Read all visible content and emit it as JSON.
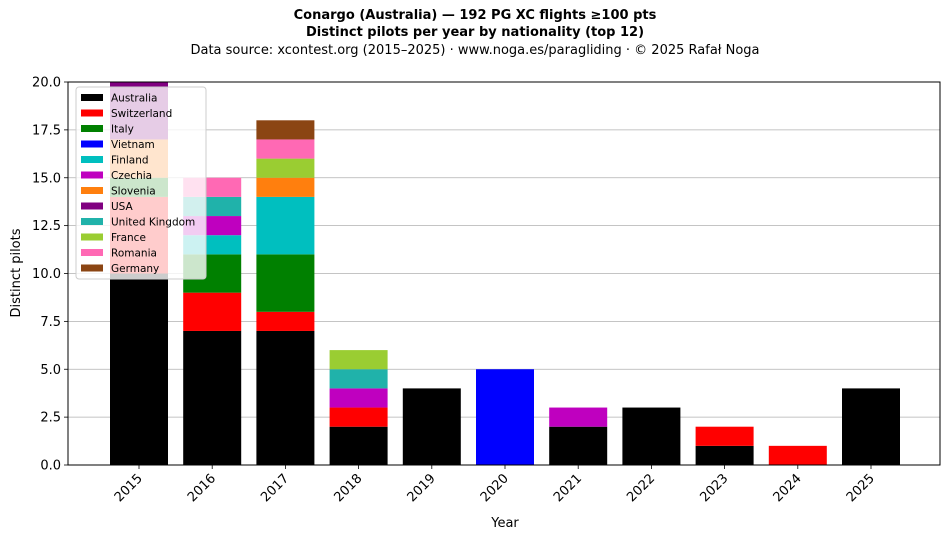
{
  "header": {
    "title": "Conargo (Australia)  —  192 PG XC flights ≥100 pts",
    "subtitle": "Distinct pilots per year by nationality (top 12)",
    "source": "Data source: xcontest.org (2015–2025)  ·  www.noga.es/paragliding  ·  © 2025 Rafał Noga"
  },
  "chart_data": {
    "type": "bar",
    "stacked": true,
    "title": "Conargo (Australia)  —  192 PG XC flights ≥100 pts",
    "subtitle": "Distinct pilots per year by nationality (top 12)",
    "xlabel": "Year",
    "ylabel": "Distinct pilots",
    "ylim": [
      0,
      20
    ],
    "yticks": [
      "0.0",
      "2.5",
      "5.0",
      "7.5",
      "10.0",
      "12.5",
      "15.0",
      "17.5",
      "20.0"
    ],
    "grid": "horizontal",
    "legend_position": "top-left",
    "categories": [
      "2015",
      "2016",
      "2017",
      "2018",
      "2019",
      "2020",
      "2021",
      "2022",
      "2023",
      "2024",
      "2025"
    ],
    "series": [
      {
        "name": "Australia",
        "color": "#000000",
        "values": [
          10,
          7,
          7,
          2,
          4,
          0,
          2,
          3,
          1,
          0,
          4
        ]
      },
      {
        "name": "Switzerland",
        "color": "#ff0000",
        "values": [
          4,
          2,
          1,
          1,
          0,
          0,
          0,
          0,
          1,
          1,
          0
        ]
      },
      {
        "name": "Italy",
        "color": "#008000",
        "values": [
          1,
          2,
          3,
          0,
          0,
          0,
          0,
          0,
          0,
          0,
          0
        ]
      },
      {
        "name": "Vietnam",
        "color": "#0000ff",
        "values": [
          0,
          0,
          0,
          0,
          0,
          5,
          0,
          0,
          0,
          0,
          0
        ]
      },
      {
        "name": "Finland",
        "color": "#00bfbf",
        "values": [
          0,
          1,
          3,
          0,
          0,
          0,
          0,
          0,
          0,
          0,
          0
        ]
      },
      {
        "name": "Czechia",
        "color": "#bf00bf",
        "values": [
          0,
          1,
          0,
          1,
          0,
          0,
          1,
          0,
          0,
          0,
          0
        ]
      },
      {
        "name": "Slovenia",
        "color": "#ff7f0e",
        "values": [
          2,
          0,
          1,
          0,
          0,
          0,
          0,
          0,
          0,
          0,
          0
        ]
      },
      {
        "name": "USA",
        "color": "#800080",
        "values": [
          3,
          0,
          0,
          0,
          0,
          0,
          0,
          0,
          0,
          0,
          0
        ]
      },
      {
        "name": "United Kingdom",
        "color": "#20b2aa",
        "values": [
          0,
          1,
          0,
          1,
          0,
          0,
          0,
          0,
          0,
          0,
          0
        ]
      },
      {
        "name": "France",
        "color": "#9acd32",
        "values": [
          0,
          0,
          1,
          1,
          0,
          0,
          0,
          0,
          0,
          0,
          0
        ]
      },
      {
        "name": "Romania",
        "color": "#ff69b4",
        "values": [
          0,
          1,
          1,
          0,
          0,
          0,
          0,
          0,
          0,
          0,
          0
        ]
      },
      {
        "name": "Germany",
        "color": "#8b4513",
        "values": [
          0,
          0,
          1,
          0,
          0,
          0,
          0,
          0,
          0,
          0,
          0
        ]
      }
    ]
  }
}
